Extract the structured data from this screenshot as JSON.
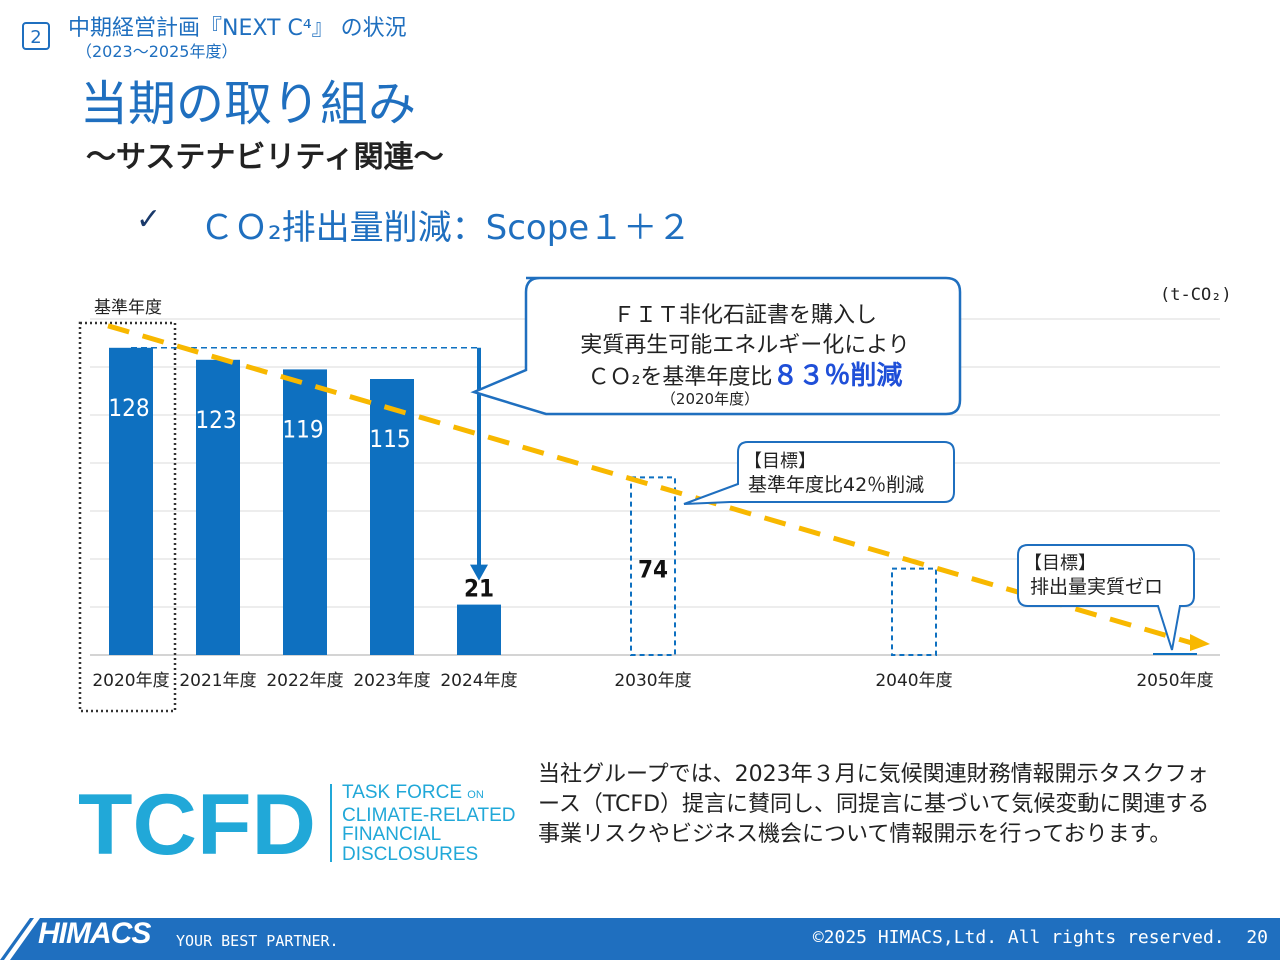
{
  "header": {
    "section_number": "2",
    "section_title": "中期経営計画『NEXT C⁴』 の状況",
    "section_subtitle": "（2023～2025年度）",
    "title": "当期の取り組み",
    "subtitle": "～サステナビリティ関連～",
    "check_mark": "✓",
    "topic": "ＣＯ₂排出量削減：Scope１＋２"
  },
  "chart_data": {
    "type": "bar",
    "unit_label": "(t-CO₂)",
    "baseline_label": "基準年度",
    "categories": [
      "2020年度",
      "2021年度",
      "2022年度",
      "2023年度",
      "2024年度",
      "2030年度",
      "2040年度",
      "2050年度"
    ],
    "series": [
      {
        "name": "",
        "values": [
          128,
          123,
          119,
          115,
          21,
          74,
          null,
          0
        ],
        "kinds": [
          "actual",
          "actual",
          "actual",
          "actual",
          "actual",
          "target",
          "target",
          "target"
        ]
      }
    ],
    "target_2040_estimate": 36,
    "value_labels": [
      "128",
      "123",
      "119",
      "115",
      "21",
      "74",
      "",
      ""
    ],
    "trend_line": {
      "from": 128,
      "to": 0
    },
    "ylim": [
      0,
      140
    ],
    "grid": true,
    "callouts": {
      "fit_line1": "ＦＩＴ非化石証書を購入し",
      "fit_line2": "実質再生可能エネルギー化により",
      "fit_line3_prefix": "ＣＯ₂を基準年度比",
      "fit_line3_highlight": "８３％削減",
      "fit_line4": "（2020年度）",
      "target2030_line1": "【目標】",
      "target2030_line2": "基準年度比42％削減",
      "target2050_line1": "【目標】",
      "target2050_line2": "排出量実質ゼロ"
    },
    "colors": {
      "bar": "#0e70c0",
      "trend": "#f8b800",
      "highlight": "#1f4fd8",
      "callout_border": "#1f6fbf"
    }
  },
  "tcfd": {
    "logo_text": "TCFD",
    "line1": "TASK FORCE",
    "line1_small": "ON",
    "line2": "CLIMATE-RELATED",
    "line3": "FINANCIAL",
    "line4": "DISCLOSURES",
    "description": "当社グループでは、2023年３月に気候関連財務情報開示タスクフォース（TCFD）提言に賛同し、同提言に基づいて気候変動に関連する事業リスクやビジネス機会について情報開示を行っております。"
  },
  "footer": {
    "brand": "HIMACS",
    "tagline": "YOUR BEST PARTNER.",
    "copyright": "©2025 HIMACS,Ltd. All rights reserved.",
    "page_number": "20"
  }
}
